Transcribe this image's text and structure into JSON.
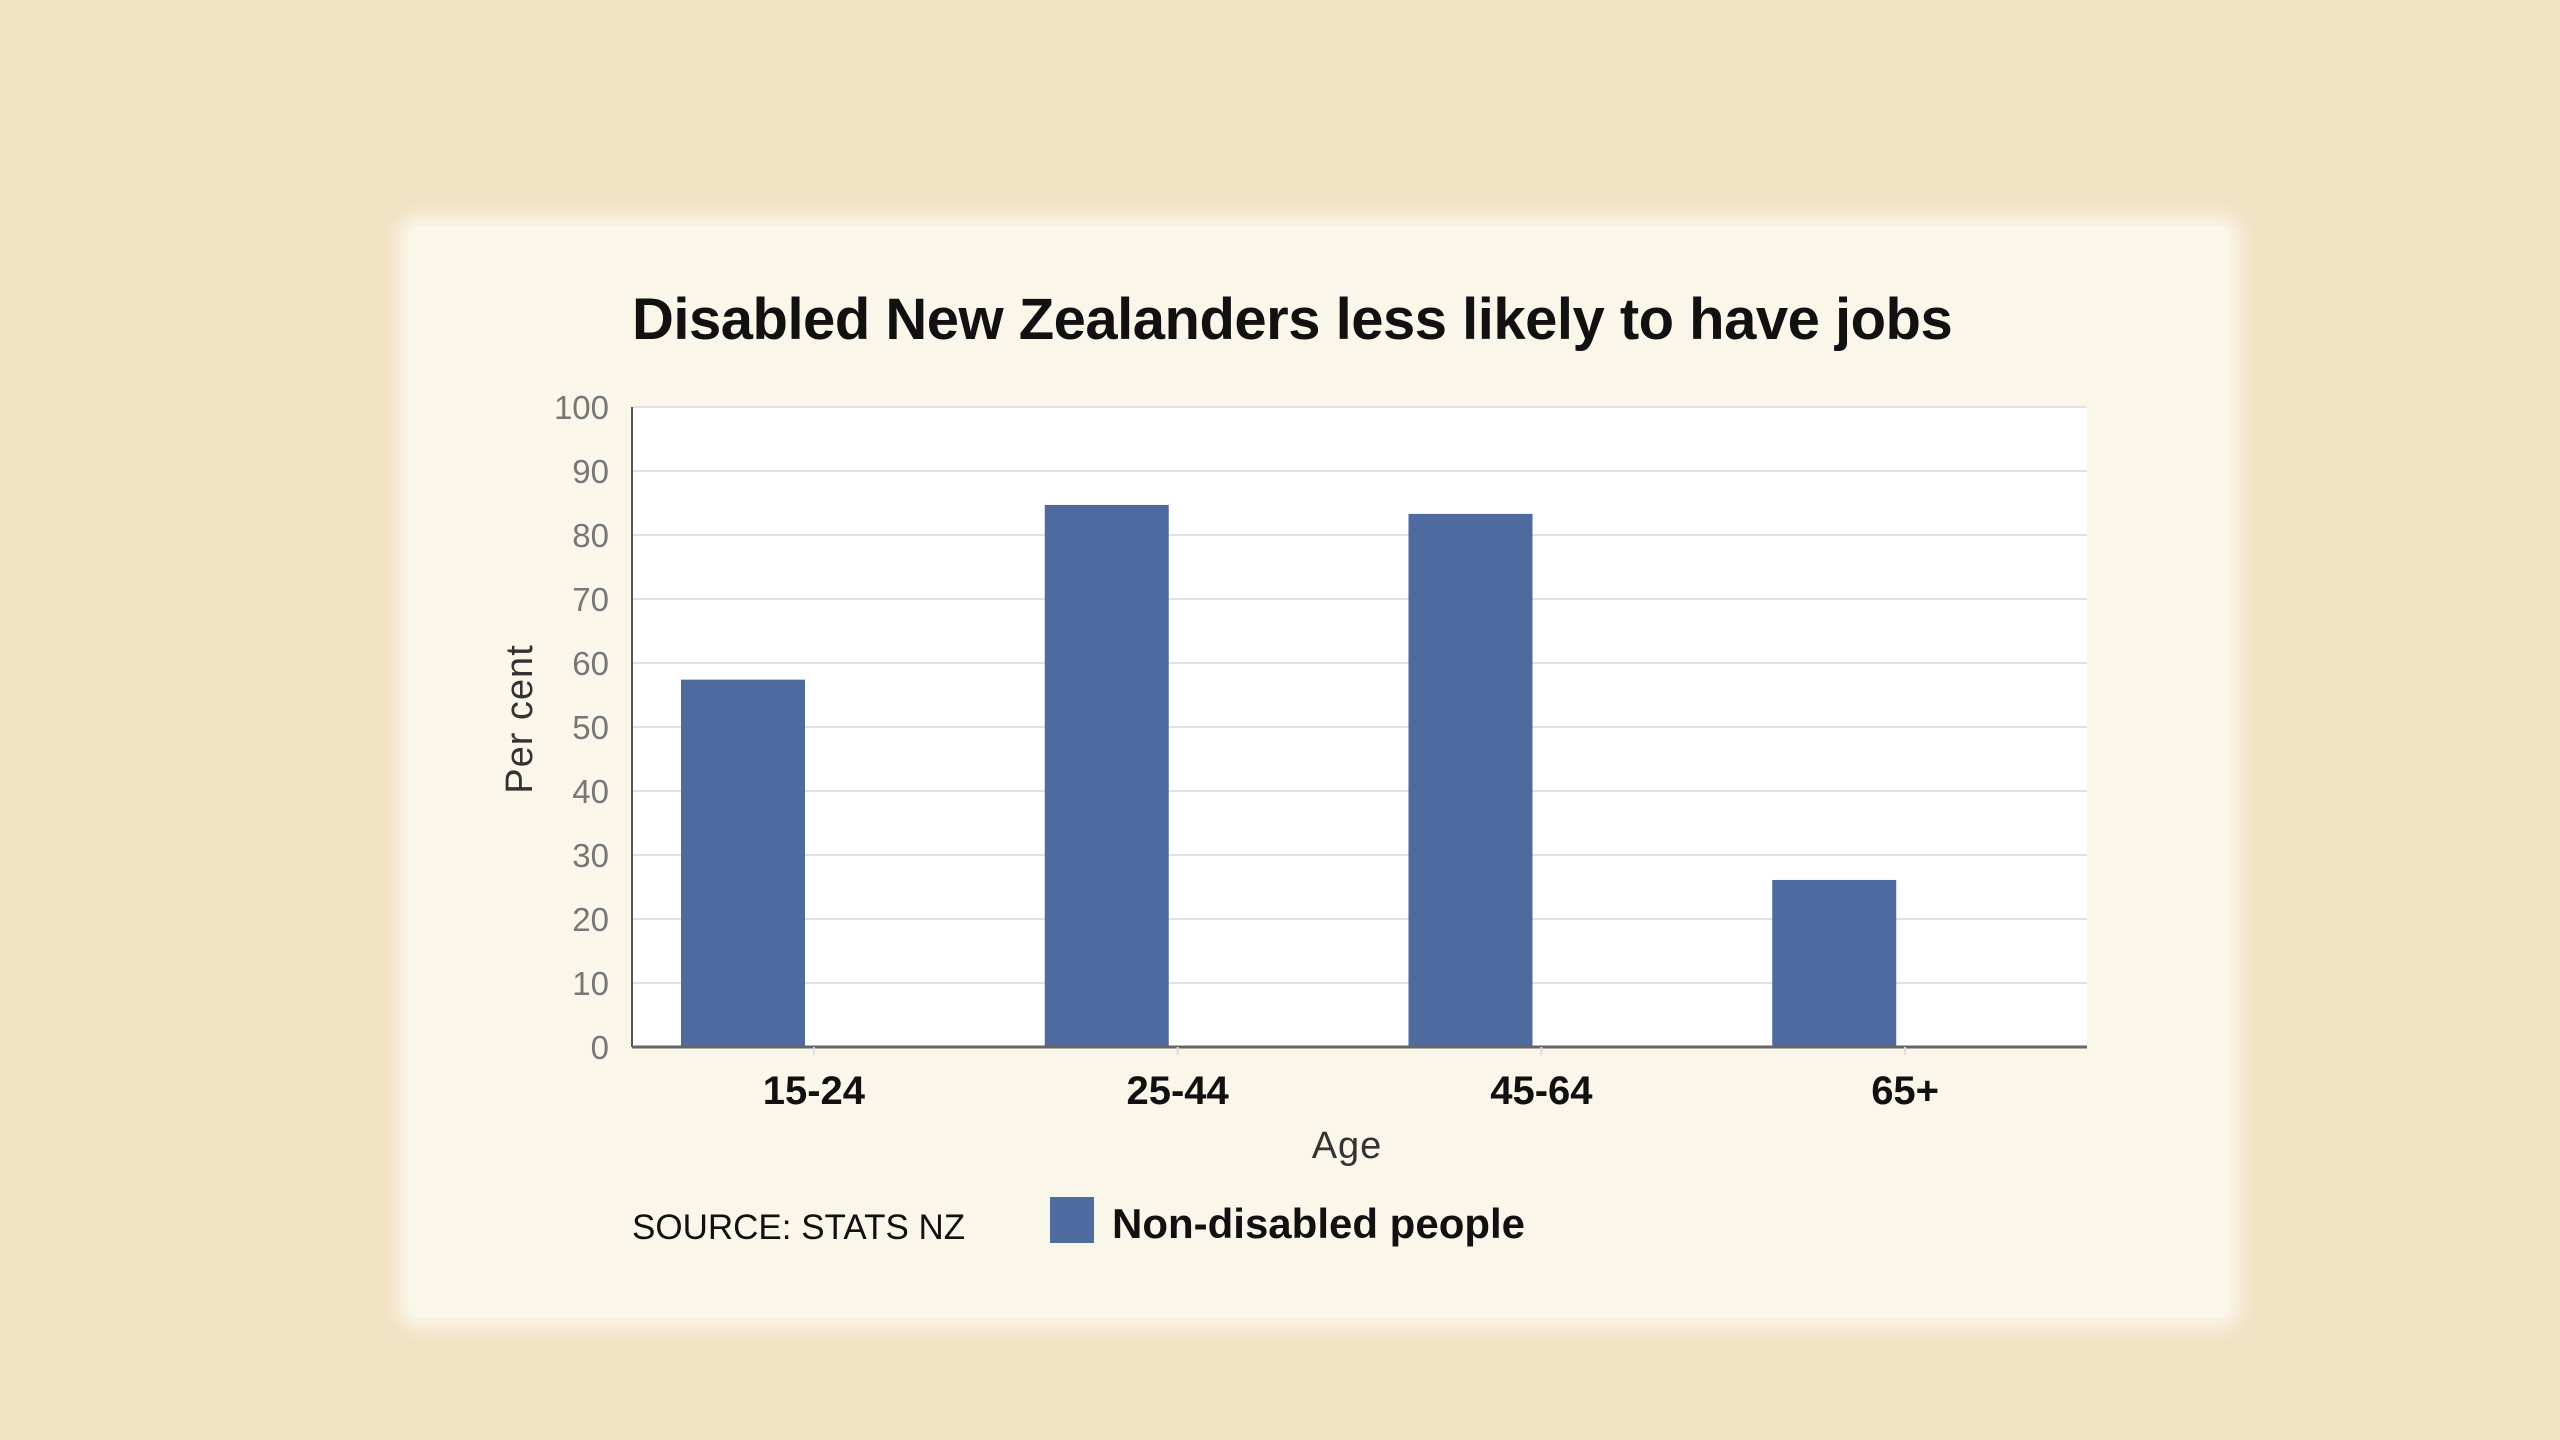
{
  "chart_data": {
    "type": "bar",
    "title": "Disabled New Zealanders less likely to have jobs",
    "xlabel": "Age",
    "ylabel": "Per cent",
    "categories": [
      "15-24",
      "25-44",
      "45-64",
      "65+"
    ],
    "series": [
      {
        "name": "Non-disabled people",
        "values": [
          57.4,
          84.7,
          83.3,
          26.1
        ],
        "color": "#4f6a9e"
      }
    ],
    "ylim": [
      0,
      100
    ],
    "yticks": [
      0,
      10,
      20,
      30,
      40,
      50,
      60,
      70,
      80,
      90,
      100
    ],
    "grid": true,
    "legend_position": "bottom",
    "source": "SOURCE: STATS NZ"
  },
  "colors": {
    "background": "#f2e2c4",
    "panel": "#fbf6ea",
    "plot": "#ffffff",
    "bar": "#4f6a9e"
  }
}
